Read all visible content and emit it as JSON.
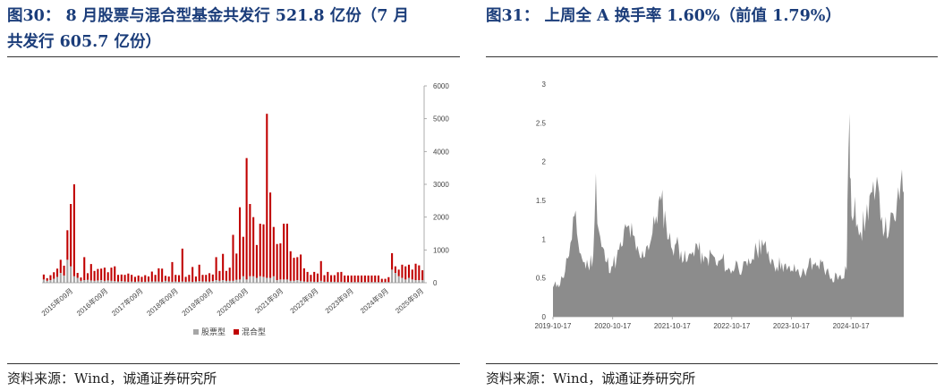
{
  "left": {
    "title_line1": "图30：  8 月股票与混合型基金共发行 521.8 亿份（7 月",
    "title_line2": "共发行 605.7 亿份）",
    "source": "资料来源：Wind，诚通证券研究所",
    "chart_data": {
      "type": "bar",
      "stacked": true,
      "y_axis_side": "right",
      "ylim": [
        0,
        6000
      ],
      "yticks": [
        "0",
        "1000",
        "2000",
        "3000",
        "4000",
        "5000",
        "6000"
      ],
      "x_tick_labels": [
        "2015年09月",
        "2016年09月",
        "2017年09月",
        "2018年09月",
        "2019年09月",
        "2020年09月",
        "2021年9月",
        "2022年9月",
        "2023年9月",
        "2024年9月",
        "2025年9月"
      ],
      "legend_position": "bottom",
      "grid": false,
      "series": [
        {
          "name": "股票型",
          "color": "#a6a6a6",
          "values": [
            100,
            60,
            80,
            120,
            180,
            300,
            220,
            700,
            500,
            200,
            150,
            60,
            80,
            90,
            70,
            60,
            70,
            80,
            60,
            70,
            60,
            50,
            40,
            50,
            40,
            30,
            40,
            30,
            40,
            30,
            30,
            40,
            40,
            40,
            40,
            30,
            60,
            40,
            30,
            40,
            30,
            40,
            30,
            40,
            30,
            40,
            50,
            40,
            40,
            40,
            50,
            80,
            60,
            80,
            60,
            60,
            60,
            90,
            100,
            200,
            100,
            200,
            200,
            150,
            200,
            180,
            150,
            150,
            200,
            80,
            100,
            100,
            100,
            60,
            60,
            80,
            60,
            40,
            30,
            40,
            30,
            30,
            60,
            30,
            30,
            30,
            30,
            20,
            30,
            20,
            20,
            20,
            20,
            20,
            20,
            20,
            20,
            20,
            20,
            20,
            20,
            20,
            20,
            400,
            300,
            200,
            150,
            100,
            150,
            100,
            80,
            80,
            80
          ]
        },
        {
          "name": "混合型",
          "color": "#c00000",
          "values": [
            150,
            80,
            150,
            200,
            250,
            400,
            300,
            900,
            1900,
            2800,
            150,
            100,
            700,
            200,
            500,
            300,
            350,
            350,
            400,
            250,
            400,
            450,
            200,
            200,
            200,
            250,
            200,
            150,
            180,
            150,
            200,
            150,
            300,
            200,
            400,
            400,
            150,
            150,
            600,
            200,
            200,
            1000,
            150,
            200,
            450,
            150,
            500,
            200,
            200,
            250,
            200,
            700,
            300,
            800,
            300,
            400,
            1400,
            800,
            2200,
            1200,
            3700,
            2200,
            1800,
            1000,
            1600,
            1600,
            5000,
            2600,
            1500,
            1100,
            1100,
            1700,
            1700,
            900,
            700,
            700,
            800,
            400,
            300,
            200,
            300,
            250,
            600,
            200,
            300,
            200,
            200,
            300,
            300,
            200,
            200,
            200,
            200,
            200,
            200,
            200,
            200,
            200,
            200,
            200,
            100,
            100,
            150,
            500,
            200,
            200,
            400,
            400,
            400,
            300,
            500,
            450,
            300
          ]
        }
      ]
    }
  },
  "right": {
    "title": "图31：   上周全 A 换手率 1.60%（前值 1.79%）",
    "source": "资料来源：Wind，诚通证券研究所",
    "chart_data": {
      "type": "area",
      "series": [
        {
          "color": "#8c8c8c"
        }
      ],
      "ylim": [
        0,
        3
      ],
      "yticks": [
        "0",
        "0.5",
        "1",
        "1.5",
        "2",
        "2.5",
        "3"
      ],
      "x_range": [
        "2019-10-17",
        "2025-09-05"
      ],
      "x_tick_labels": [
        "2019-10-17",
        "2020-10-17",
        "2021-10-17",
        "2022-10-17",
        "2023-10-17",
        "2024-10-17"
      ],
      "grid": false,
      "x": [
        "2019-10-17",
        "2019-11-15",
        "2019-12-15",
        "2020-01-15",
        "2020-02-10",
        "2020-02-25",
        "2020-03-20",
        "2020-04-20",
        "2020-05-20",
        "2020-06-20",
        "2020-07-06",
        "2020-07-15",
        "2020-08-10",
        "2020-09-10",
        "2020-10-10",
        "2020-11-10",
        "2020-12-10",
        "2021-01-10",
        "2021-02-18",
        "2021-03-10",
        "2021-04-10",
        "2021-05-10",
        "2021-06-10",
        "2021-07-10",
        "2021-08-10",
        "2021-09-10",
        "2021-10-10",
        "2021-11-10",
        "2021-12-10",
        "2022-01-10",
        "2022-02-10",
        "2022-03-10",
        "2022-04-26",
        "2022-05-20",
        "2022-06-20",
        "2022-07-20",
        "2022-08-20",
        "2022-09-20",
        "2022-10-20",
        "2022-11-20",
        "2022-12-20",
        "2023-01-20",
        "2023-02-20",
        "2023-03-20",
        "2023-04-20",
        "2023-05-20",
        "2023-06-20",
        "2023-07-20",
        "2023-08-20",
        "2023-09-20",
        "2023-10-20",
        "2023-11-20",
        "2023-12-20",
        "2024-01-20",
        "2024-02-05",
        "2024-02-20",
        "2024-03-20",
        "2024-04-20",
        "2024-05-20",
        "2024-06-20",
        "2024-07-20",
        "2024-08-20",
        "2024-09-20",
        "2024-09-25",
        "2024-10-08",
        "2024-10-10",
        "2024-10-20",
        "2024-11-10",
        "2024-11-25",
        "2024-12-15",
        "2025-01-15",
        "2025-02-15",
        "2025-03-10",
        "2025-04-08",
        "2025-05-10",
        "2025-06-10",
        "2025-07-10",
        "2025-08-10",
        "2025-08-25",
        "2025-09-05"
      ],
      "values": [
        0.38,
        0.42,
        0.5,
        0.75,
        1.0,
        1.3,
        0.95,
        0.7,
        0.65,
        0.8,
        1.85,
        1.2,
        0.9,
        0.7,
        0.65,
        0.75,
        0.9,
        1.15,
        1.05,
        0.85,
        0.75,
        0.9,
        1.0,
        1.3,
        1.5,
        1.2,
        0.9,
        0.95,
        0.85,
        0.7,
        0.8,
        0.95,
        0.7,
        0.75,
        0.8,
        0.65,
        0.75,
        0.6,
        0.6,
        0.7,
        0.6,
        0.65,
        0.75,
        0.85,
        1.0,
        0.8,
        0.75,
        0.65,
        0.7,
        0.6,
        0.6,
        0.6,
        0.55,
        0.6,
        0.75,
        0.6,
        0.65,
        0.7,
        0.6,
        0.5,
        0.55,
        0.48,
        0.6,
        1.5,
        2.62,
        1.8,
        1.3,
        1.55,
        1.2,
        1.1,
        1.25,
        1.6,
        1.5,
        1.6,
        1.1,
        1.15,
        1.25,
        1.5,
        1.9,
        1.6
      ]
    }
  }
}
